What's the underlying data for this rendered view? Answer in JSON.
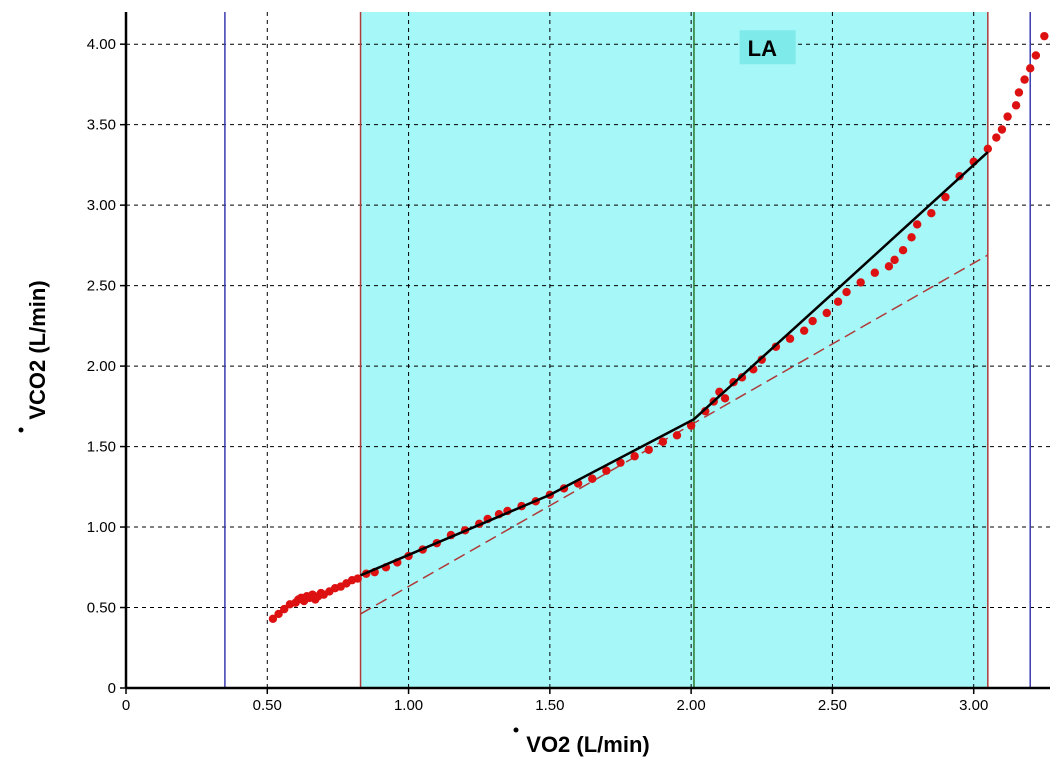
{
  "chart_data": {
    "type": "scatter",
    "xlabel": "VO2 (L/min)",
    "ylabel": "VCO2 (L/min)",
    "xlim": [
      0,
      3.27
    ],
    "ylim": [
      0,
      4.2
    ],
    "x_ticks": [
      {
        "value": 0,
        "label": "0"
      },
      {
        "value": 0.5,
        "label": "0.50"
      },
      {
        "value": 1.0,
        "label": "1.00"
      },
      {
        "value": 1.5,
        "label": "1.50"
      },
      {
        "value": 2.0,
        "label": "2.00"
      },
      {
        "value": 2.5,
        "label": "2.50"
      },
      {
        "value": 3.0,
        "label": "3.00"
      }
    ],
    "y_ticks": [
      {
        "value": 0,
        "label": "0"
      },
      {
        "value": 0.5,
        "label": "0.50"
      },
      {
        "value": 1.0,
        "label": "1.00"
      },
      {
        "value": 1.5,
        "label": "1.50"
      },
      {
        "value": 2.0,
        "label": "2.00"
      },
      {
        "value": 2.5,
        "label": "2.50"
      },
      {
        "value": 3.0,
        "label": "3.00"
      },
      {
        "value": 3.5,
        "label": "3.50"
      },
      {
        "value": 4.0,
        "label": "4.00"
      }
    ],
    "grid": true,
    "shaded_region": {
      "x": [
        0.83,
        3.05
      ],
      "color": "#a6f7f7"
    },
    "vertical_lines": [
      {
        "x": 0.35,
        "color": "#3a3ab0"
      },
      {
        "x": 0.83,
        "color": "#b03a3a"
      },
      {
        "x": 2.01,
        "color": "#2a7a2a"
      },
      {
        "x": 3.05,
        "color": "#b03a3a"
      },
      {
        "x": 3.2,
        "color": "#3a3ab0"
      }
    ],
    "annotation": {
      "text": "LA",
      "x": 2.2,
      "y": 3.95,
      "bg": "#7feaea"
    },
    "fit_line": {
      "color": "#000000",
      "x": [
        0.83,
        1.5,
        2.01,
        2.5,
        3.05
      ],
      "y": [
        0.7,
        1.2,
        1.67,
        2.45,
        3.33
      ]
    },
    "reference_line": {
      "color": "#b03a3a",
      "x": [
        0.83,
        3.05
      ],
      "y": [
        0.46,
        2.69
      ]
    },
    "points": {
      "color": "#dd1111",
      "x": [
        0.52,
        0.54,
        0.56,
        0.58,
        0.6,
        0.61,
        0.62,
        0.63,
        0.64,
        0.65,
        0.66,
        0.67,
        0.68,
        0.69,
        0.7,
        0.72,
        0.74,
        0.76,
        0.78,
        0.8,
        0.82,
        0.85,
        0.88,
        0.92,
        0.96,
        1.0,
        1.05,
        1.1,
        1.15,
        1.2,
        1.25,
        1.28,
        1.32,
        1.35,
        1.4,
        1.45,
        1.5,
        1.55,
        1.6,
        1.65,
        1.7,
        1.75,
        1.8,
        1.85,
        1.9,
        1.95,
        2.0,
        2.05,
        2.08,
        2.1,
        2.12,
        2.15,
        2.18,
        2.22,
        2.25,
        2.3,
        2.35,
        2.4,
        2.43,
        2.48,
        2.52,
        2.55,
        2.6,
        2.65,
        2.7,
        2.72,
        2.75,
        2.78,
        2.8,
        2.85,
        2.9,
        2.95,
        3.0,
        3.05,
        3.08,
        3.1,
        3.12,
        3.15,
        3.16,
        3.18,
        3.2,
        3.22,
        3.25
      ],
      "y": [
        0.43,
        0.46,
        0.49,
        0.52,
        0.53,
        0.55,
        0.56,
        0.54,
        0.57,
        0.56,
        0.58,
        0.55,
        0.57,
        0.59,
        0.58,
        0.6,
        0.62,
        0.63,
        0.65,
        0.67,
        0.68,
        0.71,
        0.72,
        0.75,
        0.78,
        0.82,
        0.86,
        0.9,
        0.95,
        0.98,
        1.02,
        1.05,
        1.08,
        1.1,
        1.13,
        1.16,
        1.2,
        1.24,
        1.27,
        1.3,
        1.35,
        1.4,
        1.44,
        1.48,
        1.53,
        1.57,
        1.63,
        1.72,
        1.78,
        1.84,
        1.8,
        1.9,
        1.93,
        1.98,
        2.04,
        2.12,
        2.17,
        2.22,
        2.28,
        2.33,
        2.4,
        2.46,
        2.52,
        2.58,
        2.62,
        2.66,
        2.72,
        2.8,
        2.88,
        2.95,
        3.05,
        3.18,
        3.27,
        3.35,
        3.42,
        3.47,
        3.55,
        3.62,
        3.7,
        3.78,
        3.85,
        3.93,
        4.05
      ]
    }
  }
}
